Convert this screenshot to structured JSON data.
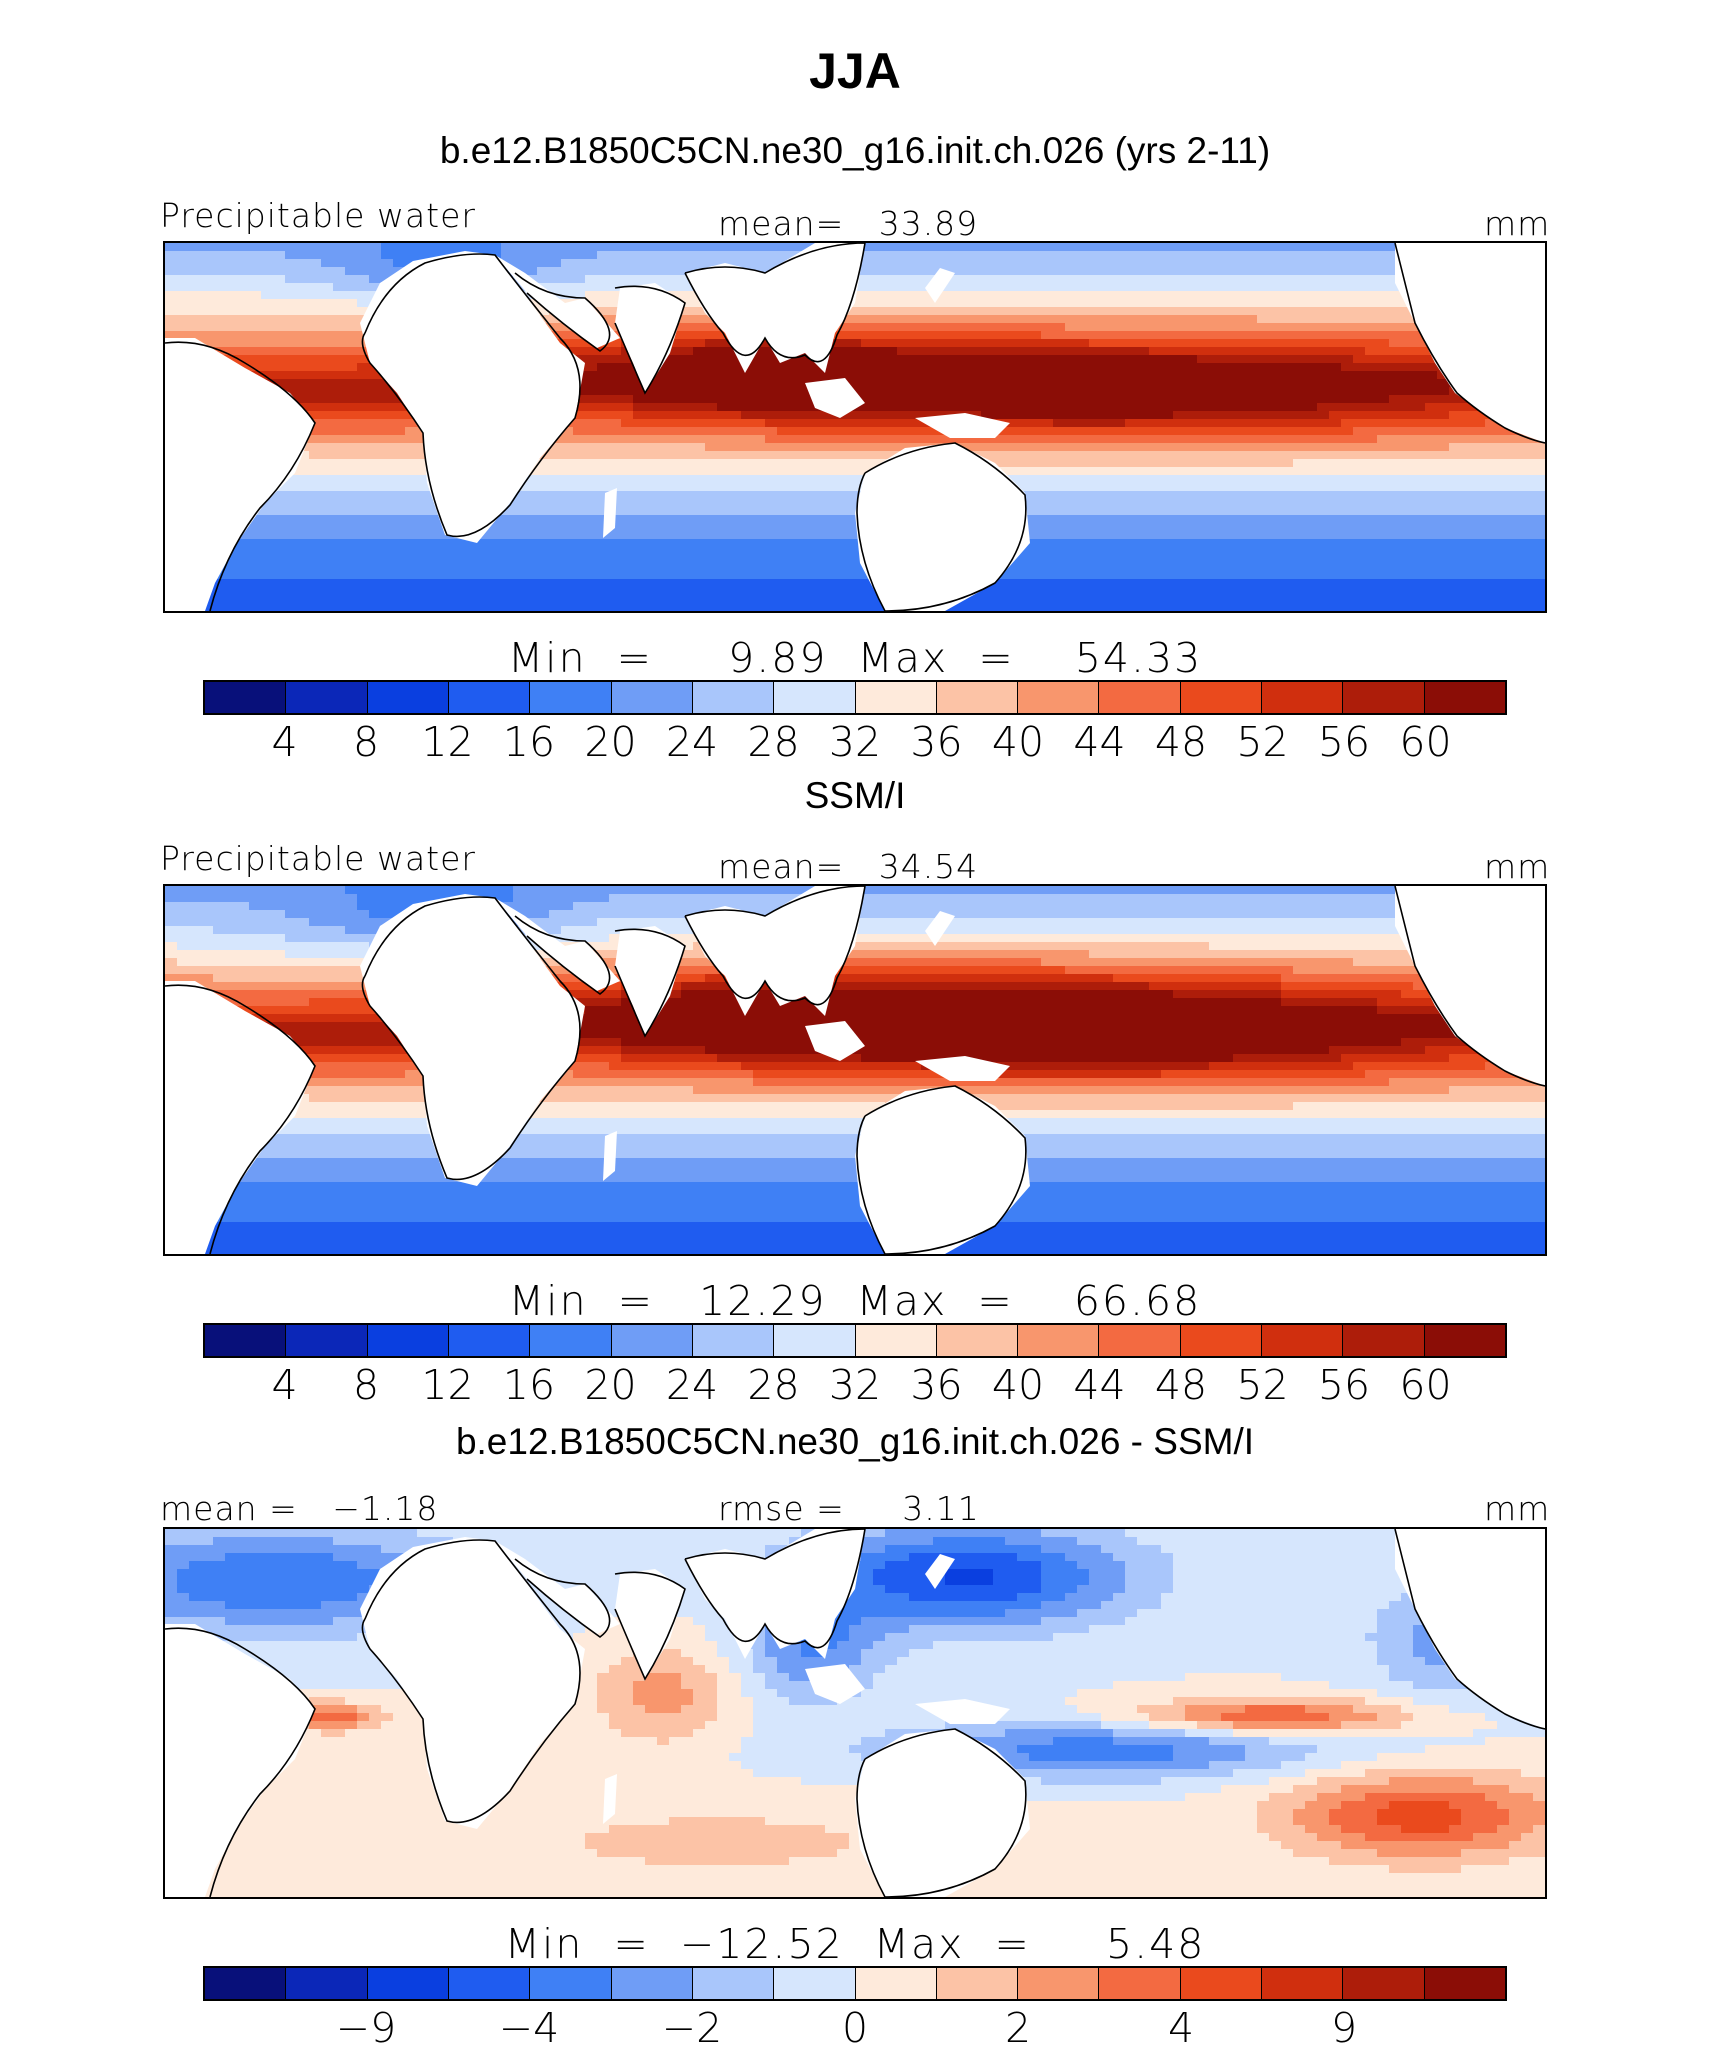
{
  "title": "JJA",
  "colors": {
    "scale": [
      "#08107a",
      "#0b27b8",
      "#0a3fe0",
      "#1f5cf0",
      "#3f80f5",
      "#6f9df6",
      "#a9c6fb",
      "#d6e6fd",
      "#feeadb",
      "#fcc3a6",
      "#f8966d",
      "#f36a41",
      "#ea4a1d",
      "#d02f0e",
      "#ad1d0a",
      "#8b0d06"
    ],
    "land": "#ffffff",
    "coast": "#000000"
  },
  "panels": [
    {
      "subtitle": "b.e12.B1850C5CN.ne30_g16.init.ch.026 (yrs 2-11)",
      "left_label": "Precipitable water",
      "center_label": "mean=   33.89",
      "unit": "mm",
      "minmax": "Min  =     9.89  Max  =    54.33",
      "ticks": [
        "4",
        "8",
        "12",
        "16",
        "20",
        "24",
        "28",
        "32",
        "36",
        "40",
        "44",
        "48",
        "52",
        "56",
        "60"
      ],
      "field": "model"
    },
    {
      "subtitle": "SSM/I",
      "left_label": "Precipitable water",
      "center_label": "mean=   34.54",
      "unit": "mm",
      "minmax": "Min  =   12.29  Max  =    66.68",
      "ticks": [
        "4",
        "8",
        "12",
        "16",
        "20",
        "24",
        "28",
        "32",
        "36",
        "40",
        "44",
        "48",
        "52",
        "56",
        "60"
      ],
      "field": "obs"
    },
    {
      "subtitle": "b.e12.B1850C5CN.ne30_g16.init.ch.026 - SSM/I",
      "left_label": "mean =   −1.18",
      "center_label": "rmse =     3.11",
      "unit": "mm",
      "minmax": "Min  =  −12.52  Max  =     5.48",
      "ticks": [
        "−9",
        "−4",
        "−2",
        "0",
        "2",
        "4",
        "9"
      ],
      "field": "diff"
    }
  ]
}
